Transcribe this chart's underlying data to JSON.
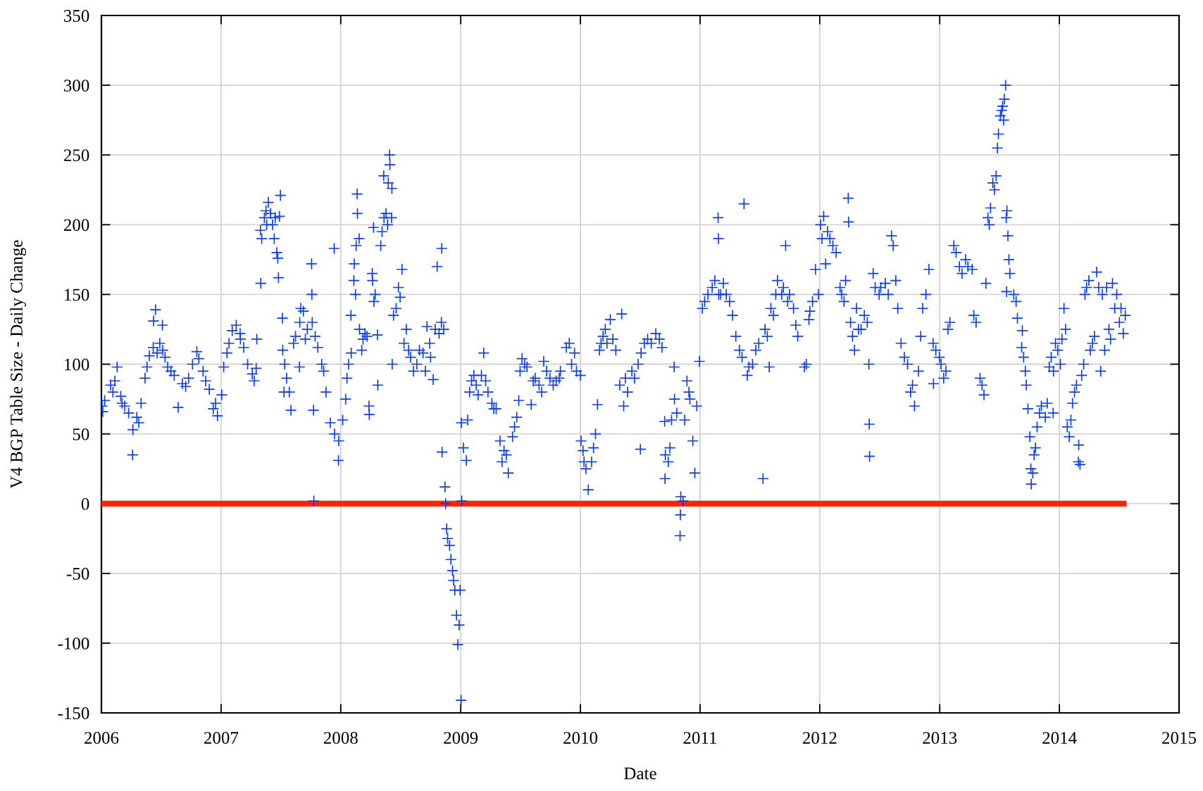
{
  "chart_data": {
    "type": "scatter",
    "xlabel": "Date",
    "ylabel": "V4 BGP Table Size - Daily Change",
    "xlim": [
      "2006",
      "2015"
    ],
    "xticks": [
      "2006",
      "2007",
      "2008",
      "2009",
      "2010",
      "2011",
      "2012",
      "2013",
      "2014",
      "2015"
    ],
    "ylim": [
      -150,
      350
    ],
    "yticks": [
      -150,
      -100,
      -50,
      0,
      50,
      100,
      150,
      200,
      250,
      300,
      350
    ],
    "grid": true,
    "series": [
      {
        "marker": "cross",
        "color": "#0a3cff",
        "x": [
          "2006-01-03",
          "2006-01-05",
          "2006-01-11",
          "2006-01-29",
          "2006-02-11",
          "2006-02-18",
          "2006-03-01",
          "2006-03-13",
          "2006-03-25",
          "2006-04-06",
          "2006-04-07",
          "2006-04-19",
          "2006-05-02",
          "2006-05-14",
          "2006-05-27",
          "2006-06-08",
          "2006-06-09",
          "2006-06-15",
          "2006-06-28",
          "2006-07-06",
          "2006-07-07",
          "2006-07-22",
          "2006-08-11",
          "2006-08-23",
          "2006-09-05",
          "2006-09-24",
          "2006-10-06",
          "2006-10-19",
          "2006-11-07",
          "2006-11-26",
          "2006-12-08",
          "2006-12-21",
          "2007-01-03",
          "2007-01-09",
          "2007-01-19",
          "2007-02-04",
          "2007-02-16",
          "2007-02-28",
          "2007-03-11",
          "2007-03-23",
          "2007-04-06",
          "2007-04-18",
          "2007-04-20",
          "2007-05-01",
          "2007-05-02",
          "2007-05-13",
          "2007-05-25",
          "2007-06-07",
          "2007-06-20",
          "2007-06-23",
          "2007-06-25",
          "2007-06-28",
          "2007-07-01",
          "2007-07-07",
          "2007-07-08",
          "2007-07-20",
          "2007-07-28",
          "2007-08-02",
          "2007-08-16",
          "2007-08-28",
          "2007-08-29",
          "2007-09-09",
          "2007-09-21",
          "2007-10-04",
          "2007-10-05",
          "2007-10-06",
          "2007-10-10",
          "2007-10-11",
          "2007-10-23",
          "2007-11-04",
          "2007-11-17",
          "2007-11-30",
          "2007-12-12",
          "2007-12-13",
          "2007-12-25",
          "2007-12-26",
          "2008-01-07",
          "2008-01-16",
          "2008-01-25",
          "2008-02-01",
          "2008-02-02",
          "2008-02-10",
          "2008-02-11",
          "2008-02-20",
          "2008-02-21",
          "2008-02-26",
          "2008-02-27",
          "2008-03-09",
          "2008-03-21",
          "2008-03-27",
          "2008-03-28",
          "2008-04-06",
          "2008-04-07",
          "2008-04-10",
          "2008-04-11",
          "2008-04-22",
          "2008-04-23",
          "2008-05-02",
          "2008-05-11",
          "2008-05-12",
          "2008-05-23",
          "2008-05-29",
          "2008-05-30",
          "2008-06-04",
          "2008-06-05",
          "2008-06-06",
          "2008-06-18",
          "2008-06-30",
          "2008-07-06",
          "2008-07-19",
          "2008-08-01",
          "2008-08-20",
          "2008-09-08",
          "2008-09-20",
          "2008-10-01",
          "2008-10-09",
          "2008-10-21",
          "2008-10-27",
          "2008-11-03",
          "2008-11-04",
          "2008-11-05",
          "2008-11-14",
          "2008-11-16",
          "2008-11-19",
          "2008-11-28",
          "2008-12-07",
          "2008-12-14",
          "2008-12-19",
          "2008-12-23",
          "2008-12-27",
          "2008-12-30",
          "2009-01-02",
          "2009-01-03",
          "2009-01-04",
          "2009-01-09",
          "2009-01-18",
          "2009-01-28",
          "2009-02-10",
          "2009-02-23",
          "2009-03-12",
          "2009-03-18",
          "2009-04-06",
          "2009-04-19",
          "2009-05-01",
          "2009-05-13",
          "2009-05-26",
          "2009-06-08",
          "2009-06-21",
          "2009-06-27",
          "2009-07-07",
          "2009-07-22",
          "2009-08-04",
          "2009-08-16",
          "2009-08-28",
          "2009-09-11",
          "2009-09-30",
          "2009-10-19",
          "2009-11-01",
          "2009-11-19",
          "2009-11-28",
          "2009-12-14",
          "2009-12-20",
          "2010-01-01",
          "2010-01-03",
          "2010-01-09",
          "2010-01-18",
          "2010-01-25",
          "2010-02-04",
          "2010-02-16",
          "2010-02-22",
          "2010-02-28",
          "2010-03-11",
          "2010-03-23",
          "2010-04-02",
          "2010-04-19",
          "2010-05-01",
          "2010-05-07",
          "2010-05-13",
          "2010-05-25",
          "2010-06-07",
          "2010-06-26",
          "2010-07-03",
          "2010-07-15",
          "2010-07-25",
          "2010-08-19",
          "2010-09-07",
          "2010-09-15",
          "2010-09-16",
          "2010-09-17",
          "2010-09-26",
          "2010-10-06",
          "2010-10-14",
          "2010-10-15",
          "2010-10-22",
          "2010-11-01",
          "2010-11-02",
          "2010-11-03",
          "2010-11-10",
          "2010-11-22",
          "2010-12-01",
          "2010-12-10",
          "2010-12-16",
          "2010-12-22",
          "2010-12-30",
          "2011-01-08",
          "2011-01-25",
          "2011-02-07",
          "2011-02-25",
          "2011-02-26",
          "2011-02-27",
          "2011-03-13",
          "2011-04-01",
          "2011-04-20",
          "2011-05-09",
          "2011-05-15",
          "2011-05-25",
          "2011-06-10",
          "2011-06-29",
          "2011-07-12",
          "2011-07-18",
          "2011-07-31",
          "2011-08-13",
          "2011-08-25",
          "2011-09-07",
          "2011-09-19",
          "2011-10-01",
          "2011-10-13",
          "2011-10-26",
          "2011-11-21",
          "2011-11-29",
          "2011-12-10",
          "2011-12-19",
          "2012-01-04",
          "2012-01-13",
          "2012-01-19",
          "2012-02-01",
          "2012-02-20",
          "2012-03-03",
          "2012-03-15",
          "2012-03-28",
          "2012-03-29",
          "2012-04-04",
          "2012-04-16",
          "2012-04-28",
          "2012-05-16",
          "2012-05-30",
          "2012-05-31",
          "2012-06-01",
          "2012-06-12",
          "2012-06-30",
          "2012-07-19",
          "2012-08-07",
          "2012-08-20",
          "2012-08-26",
          "2012-09-15",
          "2012-10-04",
          "2012-10-16",
          "2012-10-28",
          "2012-11-10",
          "2012-11-29",
          "2012-12-12",
          "2012-12-13",
          "2012-12-31",
          "2013-01-13",
          "2013-02-01",
          "2013-02-13",
          "2013-03-02",
          "2013-03-21",
          "2013-04-10",
          "2013-04-22",
          "2013-05-04",
          "2013-05-16",
          "2013-05-22",
          "2013-05-28",
          "2013-06-05",
          "2013-06-12",
          "2013-06-22",
          "2013-06-26",
          "2013-06-29",
          "2013-07-05",
          "2013-07-12",
          "2013-07-17",
          "2013-07-21",
          "2013-07-23",
          "2013-07-24",
          "2013-07-25",
          "2013-07-28",
          "2013-07-31",
          "2013-08-22",
          "2013-08-26",
          "2013-09-08",
          "2013-09-10",
          "2013-09-19",
          "2013-09-22",
          "2013-09-27",
          "2013-10-03",
          "2013-10-06",
          "2013-10-07",
          "2013-10-16",
          "2013-10-25",
          "2013-11-07",
          "2013-11-19",
          "2013-12-01",
          "2013-12-13",
          "2013-12-14",
          "2013-12-27",
          "2014-01-09",
          "2014-01-15",
          "2014-01-25",
          "2014-01-31",
          "2014-02-10",
          "2014-02-16",
          "2014-02-28",
          "2014-03-01",
          "2014-03-10",
          "2014-03-16",
          "2014-03-25",
          "2014-04-01",
          "2014-04-12",
          "2014-04-25",
          "2014-05-01",
          "2014-05-07",
          "2014-05-19",
          "2014-06-01",
          "2014-06-12",
          "2014-06-19",
          "2014-07-03",
          "2014-07-15",
          "2014-07-21",
          "2006-02-05",
          "2006-03-05",
          "2006-04-25",
          "2006-05-20",
          "2006-06-20",
          "2006-07-14",
          "2006-08-01",
          "2006-09-15",
          "2006-10-25",
          "2006-11-15",
          "2006-12-15",
          "2007-01-25",
          "2007-03-01",
          "2007-04-12",
          "2007-05-05",
          "2007-05-18",
          "2007-05-20",
          "2007-06-01",
          "2007-06-12",
          "2007-06-15",
          "2007-07-12",
          "2007-07-14",
          "2007-08-10",
          "2007-09-01",
          "2007-09-15",
          "2007-10-15",
          "2007-11-10",
          "2008-01-20",
          "2008-02-15",
          "2008-02-17",
          "2008-03-05",
          "2008-03-15",
          "2008-04-15",
          "2008-05-06",
          "2008-05-18",
          "2008-05-25",
          "2008-06-10",
          "2008-06-25",
          "2008-07-12",
          "2008-07-26",
          "2008-08-10",
          "2008-08-28",
          "2008-09-15",
          "2008-09-28",
          "2008-10-15",
          "2008-11-10",
          "2008-11-22",
          "2008-12-02",
          "2008-12-10",
          "2009-01-22",
          "2009-02-03",
          "2009-02-17",
          "2009-03-05",
          "2009-03-25",
          "2009-04-12",
          "2009-05-07",
          "2009-05-20",
          "2009-06-14",
          "2009-07-01",
          "2009-07-15",
          "2009-08-10",
          "2009-09-05",
          "2009-09-20",
          "2009-10-10",
          "2009-10-28",
          "2009-12-05",
          "2010-01-12",
          "2010-02-10",
          "2010-03-05",
          "2010-03-18",
          "2010-04-10",
          "2010-05-18",
          "2010-06-15",
          "2010-07-05",
          "2010-08-05",
          "2010-08-30",
          "2010-10-01",
          "2010-11-15",
          "2010-11-28",
          "2011-01-15",
          "2011-02-15",
          "2011-03-05",
          "2011-03-22",
          "2011-04-10",
          "2011-05-01",
          "2011-05-30",
          "2011-06-20",
          "2011-07-25",
          "2011-08-05",
          "2011-08-20",
          "2011-09-12",
          "2011-09-25",
          "2011-10-20",
          "2011-11-15",
          "2011-12-02",
          "2011-12-28",
          "2012-01-08",
          "2012-01-25",
          "2012-02-10",
          "2012-03-08",
          "2012-03-20",
          "2012-04-10",
          "2012-04-22",
          "2012-05-06",
          "2012-05-25",
          "2012-06-18",
          "2012-07-05",
          "2012-07-28",
          "2012-08-12",
          "2012-09-05",
          "2012-09-25",
          "2012-10-10",
          "2012-11-04",
          "2012-11-20",
          "2012-12-20",
          "2013-01-05",
          "2013-01-20",
          "2013-01-26",
          "2013-02-20",
          "2013-03-10",
          "2013-03-28",
          "2013-04-15",
          "2013-05-10",
          "2013-06-01",
          "2013-06-17",
          "2013-07-09",
          "2013-07-15",
          "2013-08-03",
          "2013-08-15",
          "2013-09-14",
          "2013-10-12",
          "2013-10-20",
          "2013-11-01",
          "2013-11-25",
          "2013-12-07",
          "2013-12-20",
          "2014-01-04",
          "2014-01-20",
          "2014-02-05",
          "2014-02-22",
          "2014-03-05",
          "2014-03-20",
          "2014-04-05",
          "2014-04-18",
          "2014-05-12",
          "2014-05-25",
          "2014-06-06",
          "2014-06-25",
          "2014-07-08"
        ],
        "values": [
          70,
          66,
          74,
          85,
          88,
          98,
          77,
          70,
          65,
          35,
          53,
          62,
          72,
          90,
          106,
          112,
          131,
          139,
          115,
          128,
          110,
          98,
          92,
          69,
          86,
          90,
          100,
          109,
          95,
          82,
          68,
          63,
          78,
          98,
          108,
          124,
          128,
          122,
          112,
          100,
          93,
          97,
          118,
          196,
          158,
          205,
          216,
          200,
          180,
          176,
          162,
          206,
          221,
          133,
          110,
          90,
          80,
          67,
          120,
          98,
          130,
          138,
          125,
          172,
          150,
          130,
          67,
          2,
          112,
          100,
          80,
          58,
          183,
          50,
          31,
          45,
          60,
          75,
          100,
          135,
          108,
          160,
          172,
          222,
          208,
          190,
          125,
          118,
          120,
          70,
          64,
          165,
          160,
          198,
          145,
          121,
          85,
          185,
          235,
          205,
          200,
          250,
          243,
          205,
          226,
          100,
          140,
          148,
          168,
          125,
          105,
          100,
          108,
          127,
          105,
          89,
          170,
          122,
          130,
          183,
          37,
          12,
          0,
          -18,
          -30,
          -48,
          -62,
          -80,
          -101,
          -87,
          -62,
          -141,
          58,
          2,
          40,
          31,
          80,
          92,
          78,
          108,
          88,
          72,
          68,
          45,
          38,
          22,
          48,
          62,
          74,
          104,
          98,
          71,
          90,
          85,
          102,
          90,
          88,
          95,
          112,
          115,
          108,
          95,
          92,
          45,
          38,
          25,
          10,
          30,
          50,
          71,
          110,
          120,
          115,
          132,
          110,
          85,
          136,
          70,
          80,
          95,
          100,
          39,
          115,
          118,
          122,
          112,
          59,
          18,
          35,
          30,
          60,
          98,
          75,
          65,
          -23,
          -8,
          5,
          2,
          88,
          75,
          45,
          22,
          70,
          102,
          140,
          150,
          155,
          205,
          190,
          150,
          158,
          145,
          120,
          105,
          215,
          92,
          100,
          115,
          18,
          125,
          98,
          135,
          160,
          150,
          185,
          150,
          140,
          120,
          100,
          132,
          145,
          168,
          200,
          206,
          172,
          190,
          180,
          155,
          145,
          219,
          202,
          130,
          110,
          125,
          135,
          100,
          57,
          34,
          165,
          150,
          158,
          192,
          160,
          140,
          105,
          80,
          70,
          95,
          140,
          168,
          115,
          86,
          105,
          90,
          130,
          185,
          170,
          175,
          168,
          130,
          90,
          78,
          158,
          205,
          212,
          230,
          235,
          255,
          265,
          278,
          285,
          290,
          300,
          205,
          152,
          210,
          192,
          175,
          145,
          133,
          112,
          124,
          95,
          85,
          68,
          48,
          25,
          14,
          35,
          55,
          70,
          62,
          98,
          65,
          95,
          110,
          118,
          140,
          55,
          48,
          72,
          80,
          30,
          42,
          92,
          100,
          155,
          160,
          115,
          166,
          155,
          95,
          110,
          125,
          158,
          140,
          130,
          122,
          135,
          80,
          72,
          58,
          98,
          108,
          105,
          95,
          84,
          104,
          88,
          72,
          115,
          118,
          88,
          190,
          210,
          200,
          208,
          190,
          205,
          80,
          100,
          115,
          140,
          118,
          120,
          95,
          90,
          150,
          185,
          110,
          122,
          150,
          195,
          208,
          230,
          135,
          155,
          115,
          110,
          95,
          110,
          95,
          115,
          125,
          125,
          -25,
          -40,
          -55,
          60,
          88,
          85,
          92,
          80,
          68,
          30,
          35,
          55,
          95,
          100,
          88,
          80,
          95,
          85,
          90,
          100,
          30,
          40,
          115,
          125,
          118,
          90,
          90,
          108,
          115,
          118,
          40,
          60,
          80,
          145,
          160,
          150,
          150,
          135,
          110,
          98,
          110,
          120,
          140,
          150,
          155,
          145,
          128,
          98,
          138,
          150,
          190,
          195,
          185,
          150,
          160,
          120,
          140,
          125,
          130,
          155,
          155,
          150,
          185,
          115,
          100,
          85,
          120,
          150,
          110,
          100,
          95,
          125,
          180,
          165,
          170,
          135,
          85,
          200,
          225,
          282,
          275,
          165,
          150,
          105,
          22,
          40,
          65,
          72,
          105,
          115,
          100,
          125,
          60,
          85,
          28,
          150,
          110,
          120,
          150,
          155,
          118,
          150,
          140
        ]
      },
      {
        "type": "line",
        "color": "#ff2200",
        "line_style": "solid",
        "x": [
          "2006-01-01",
          "2014-07-25"
        ],
        "values": [
          0,
          0
        ]
      }
    ]
  }
}
